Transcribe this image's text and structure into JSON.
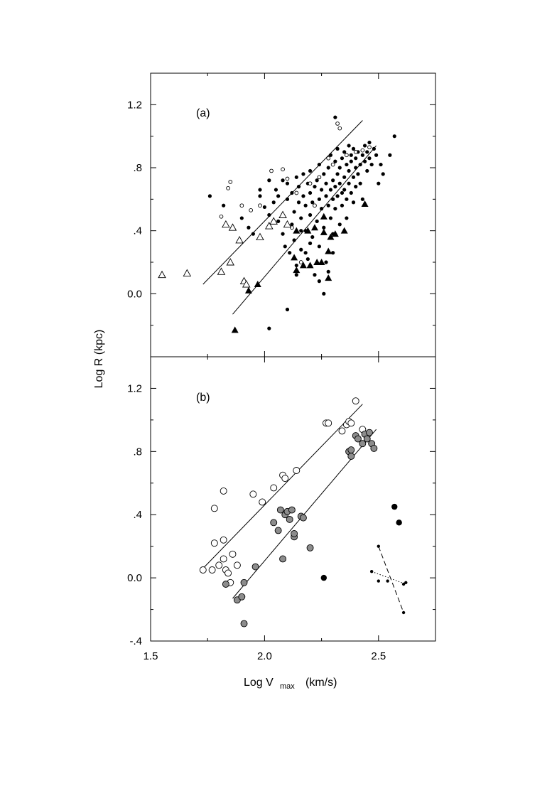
{
  "chart_data": [
    {
      "type": "scatter",
      "panel_label": "(a)",
      "xlim": [
        1.5,
        2.75
      ],
      "ylim": [
        -0.4,
        1.4
      ],
      "x_ticks": [
        1.5,
        2.0,
        2.5
      ],
      "y_ticks": [
        -0.4,
        0.0,
        0.4,
        0.8,
        1.2
      ],
      "y_tick_labels": [
        "",
        "0.0",
        ".4",
        ".8",
        "1.2"
      ],
      "grid": false,
      "series": [
        {
          "marker": "filled-small-circle",
          "points": [
            [
              1.76,
              0.62
            ],
            [
              1.82,
              0.56
            ],
            [
              1.9,
              0.48
            ],
            [
              1.93,
              0.42
            ],
            [
              1.95,
              0.38
            ],
            [
              1.98,
              0.62
            ],
            [
              2.0,
              0.55
            ],
            [
              2.02,
              0.5
            ],
            [
              2.04,
              0.58
            ],
            [
              2.05,
              0.66
            ],
            [
              2.06,
              0.46
            ],
            [
              2.08,
              0.72
            ],
            [
              2.08,
              0.38
            ],
            [
              2.09,
              0.3
            ],
            [
              2.1,
              0.6
            ],
            [
              2.1,
              0.7
            ],
            [
              2.11,
              0.26
            ],
            [
              2.12,
              0.64
            ],
            [
              2.12,
              0.44
            ],
            [
              2.13,
              0.52
            ],
            [
              2.13,
              0.34
            ],
            [
              2.14,
              0.74
            ],
            [
              2.14,
              0.18
            ],
            [
              2.15,
              0.58
            ],
            [
              2.15,
              0.68
            ],
            [
              2.16,
              0.28
            ],
            [
              2.16,
              0.48
            ],
            [
              2.17,
              0.62
            ],
            [
              2.17,
              0.76
            ],
            [
              2.18,
              0.4
            ],
            [
              2.18,
              0.56
            ],
            [
              2.19,
              0.7
            ],
            [
              2.19,
              0.22
            ],
            [
              2.2,
              0.5
            ],
            [
              2.2,
              0.64
            ],
            [
              2.2,
              0.78
            ],
            [
              2.21,
              0.36
            ],
            [
              2.21,
              0.58
            ],
            [
              2.22,
              0.68
            ],
            [
              2.22,
              0.12
            ],
            [
              2.23,
              0.46
            ],
            [
              2.23,
              0.72
            ],
            [
              2.24,
              0.6
            ],
            [
              2.24,
              0.82
            ],
            [
              2.24,
              0.3
            ],
            [
              2.25,
              0.54
            ],
            [
              2.25,
              0.66
            ],
            [
              2.26,
              0.76
            ],
            [
              2.26,
              0.42
            ],
            [
              2.27,
              0.62
            ],
            [
              2.27,
              0.7
            ],
            [
              2.27,
              0.2
            ],
            [
              2.28,
              0.56
            ],
            [
              2.28,
              0.8
            ],
            [
              2.29,
              0.66
            ],
            [
              2.29,
              0.48
            ],
            [
              2.29,
              0.88
            ],
            [
              2.3,
              0.6
            ],
            [
              2.3,
              0.72
            ],
            [
              2.3,
              0.38
            ],
            [
              2.31,
              0.68
            ],
            [
              2.31,
              0.84
            ],
            [
              2.31,
              0.54
            ],
            [
              2.32,
              0.76
            ],
            [
              2.32,
              0.62
            ],
            [
              2.32,
              0.92
            ],
            [
              2.33,
              0.7
            ],
            [
              2.33,
              0.44
            ],
            [
              2.33,
              0.8
            ],
            [
              2.34,
              0.64
            ],
            [
              2.34,
              0.86
            ],
            [
              2.34,
              0.56
            ],
            [
              2.35,
              0.74
            ],
            [
              2.35,
              0.9
            ],
            [
              2.35,
              0.66
            ],
            [
              2.36,
              0.82
            ],
            [
              2.36,
              0.6
            ],
            [
              2.36,
              0.48
            ],
            [
              2.37,
              0.78
            ],
            [
              2.37,
              0.94
            ],
            [
              2.37,
              0.7
            ],
            [
              2.38,
              0.84
            ],
            [
              2.38,
              0.64
            ],
            [
              2.38,
              0.88
            ],
            [
              2.39,
              0.74
            ],
            [
              2.39,
              0.58
            ],
            [
              2.39,
              0.92
            ],
            [
              2.4,
              0.8
            ],
            [
              2.4,
              0.68
            ],
            [
              2.4,
              0.86
            ],
            [
              2.41,
              0.76
            ],
            [
              2.41,
              0.9
            ],
            [
              2.42,
              0.82
            ],
            [
              2.42,
              0.7
            ],
            [
              2.43,
              0.88
            ],
            [
              2.43,
              0.6
            ],
            [
              2.44,
              0.84
            ],
            [
              2.44,
              0.94
            ],
            [
              2.45,
              0.78
            ],
            [
              2.45,
              0.9
            ],
            [
              2.46,
              0.86
            ],
            [
              2.46,
              0.96
            ],
            [
              2.47,
              0.82
            ],
            [
              2.48,
              0.92
            ],
            [
              2.49,
              0.88
            ],
            [
              2.5,
              0.7
            ],
            [
              2.51,
              0.82
            ],
            [
              2.52,
              0.76
            ],
            [
              2.55,
              0.88
            ],
            [
              2.57,
              1.0
            ],
            [
              2.31,
              1.12
            ],
            [
              2.26,
              0.0
            ],
            [
              2.18,
              0.26
            ],
            [
              2.14,
              0.12
            ],
            [
              2.1,
              -0.1
            ],
            [
              2.02,
              -0.22
            ],
            [
              2.2,
              0.32
            ],
            [
              2.24,
              0.08
            ],
            [
              2.28,
              0.14
            ],
            [
              2.3,
              0.26
            ],
            [
              2.16,
              0.4
            ],
            [
              2.06,
              0.62
            ],
            [
              2.02,
              0.72
            ],
            [
              1.98,
              0.66
            ]
          ]
        },
        {
          "marker": "open-small-circle",
          "points": [
            [
              1.81,
              0.49
            ],
            [
              1.84,
              0.67
            ],
            [
              1.85,
              0.71
            ],
            [
              1.9,
              0.56
            ],
            [
              1.94,
              0.53
            ],
            [
              1.98,
              0.56
            ],
            [
              2.03,
              0.78
            ],
            [
              2.08,
              0.79
            ],
            [
              2.1,
              0.73
            ],
            [
              2.14,
              0.64
            ],
            [
              2.2,
              0.7
            ],
            [
              2.24,
              0.74
            ],
            [
              2.28,
              0.86
            ],
            [
              2.32,
              1.08
            ],
            [
              2.33,
              1.05
            ],
            [
              2.36,
              0.88
            ],
            [
              2.4,
              0.9
            ],
            [
              2.43,
              0.91
            ],
            [
              2.46,
              0.93
            ],
            [
              2.22,
              0.56
            ],
            [
              2.16,
              0.2
            ],
            [
              2.12,
              0.42
            ],
            [
              2.3,
              0.82
            ]
          ]
        },
        {
          "marker": "open-triangle",
          "points": [
            [
              1.55,
              0.12
            ],
            [
              1.66,
              0.13
            ],
            [
              1.81,
              0.14
            ],
            [
              1.83,
              0.44
            ],
            [
              1.85,
              0.2
            ],
            [
              1.86,
              0.42
            ],
            [
              1.89,
              0.34
            ],
            [
              1.91,
              0.08
            ],
            [
              1.92,
              0.06
            ],
            [
              1.98,
              0.36
            ],
            [
              2.02,
              0.43
            ],
            [
              2.04,
              0.46
            ],
            [
              2.08,
              0.5
            ],
            [
              2.1,
              0.44
            ]
          ]
        },
        {
          "marker": "filled-triangle",
          "points": [
            [
              1.87,
              -0.23
            ],
            [
              1.93,
              0.02
            ],
            [
              1.97,
              0.06
            ],
            [
              2.13,
              0.23
            ],
            [
              2.14,
              0.15
            ],
            [
              2.17,
              0.18
            ],
            [
              2.2,
              0.18
            ],
            [
              2.23,
              0.2
            ],
            [
              2.25,
              0.2
            ],
            [
              2.26,
              0.49
            ],
            [
              2.28,
              0.1
            ],
            [
              2.28,
              0.27
            ],
            [
              2.29,
              0.36
            ],
            [
              2.31,
              0.38
            ],
            [
              2.35,
              0.4
            ],
            [
              2.44,
              0.57
            ],
            [
              2.14,
              0.4
            ],
            [
              2.19,
              0.4
            ],
            [
              2.22,
              0.42
            ],
            [
              2.26,
              0.39
            ]
          ]
        }
      ],
      "fit_lines": [
        {
          "x": [
            1.73,
            2.43
          ],
          "y": [
            0.06,
            1.1
          ]
        },
        {
          "x": [
            1.86,
            2.49
          ],
          "y": [
            -0.13,
            0.94
          ]
        }
      ]
    },
    {
      "type": "scatter",
      "panel_label": "(b)",
      "xlim": [
        1.5,
        2.75
      ],
      "ylim": [
        -0.4,
        1.4
      ],
      "x_ticks": [
        1.5,
        2.0,
        2.5
      ],
      "x_tick_labels": [
        "1.5",
        "2.0",
        "2.5"
      ],
      "y_ticks": [
        -0.4,
        0.0,
        0.4,
        0.8,
        1.2
      ],
      "y_tick_labels": [
        "-.4",
        "0.0",
        ".4",
        ".8",
        "1.2"
      ],
      "xlabel_main": "Log V",
      "xlabel_sub": "max",
      "xlabel_unit": "(km/s)",
      "grid": false,
      "series": [
        {
          "marker": "open-circle",
          "points": [
            [
              1.73,
              0.05
            ],
            [
              1.77,
              0.05
            ],
            [
              1.78,
              0.44
            ],
            [
              1.78,
              0.22
            ],
            [
              1.8,
              0.08
            ],
            [
              1.82,
              0.55
            ],
            [
              1.82,
              0.24
            ],
            [
              1.82,
              0.12
            ],
            [
              1.83,
              0.05
            ],
            [
              1.84,
              0.03
            ],
            [
              1.85,
              -0.03
            ],
            [
              1.86,
              0.15
            ],
            [
              1.88,
              0.08
            ],
            [
              1.95,
              0.53
            ],
            [
              1.99,
              0.48
            ],
            [
              2.04,
              0.57
            ],
            [
              2.08,
              0.65
            ],
            [
              2.09,
              0.63
            ],
            [
              2.14,
              0.68
            ],
            [
              2.27,
              0.98
            ],
            [
              2.28,
              0.98
            ],
            [
              2.34,
              0.93
            ],
            [
              2.36,
              0.97
            ],
            [
              2.37,
              0.99
            ],
            [
              2.38,
              0.98
            ],
            [
              2.4,
              1.12
            ],
            [
              2.43,
              0.94
            ]
          ]
        },
        {
          "marker": "gray-circle",
          "points": [
            [
              1.83,
              -0.04
            ],
            [
              1.88,
              -0.14
            ],
            [
              1.9,
              -0.12
            ],
            [
              1.91,
              -0.29
            ],
            [
              1.91,
              -0.03
            ],
            [
              1.96,
              0.07
            ],
            [
              2.04,
              0.35
            ],
            [
              2.06,
              0.3
            ],
            [
              2.07,
              0.43
            ],
            [
              2.08,
              0.12
            ],
            [
              2.09,
              0.4
            ],
            [
              2.1,
              0.42
            ],
            [
              2.11,
              0.37
            ],
            [
              2.12,
              0.43
            ],
            [
              2.13,
              0.26
            ],
            [
              2.13,
              0.28
            ],
            [
              2.16,
              0.39
            ],
            [
              2.17,
              0.38
            ],
            [
              2.2,
              0.19
            ],
            [
              2.37,
              0.8
            ],
            [
              2.38,
              0.77
            ],
            [
              2.38,
              0.81
            ],
            [
              2.4,
              0.9
            ],
            [
              2.41,
              0.88
            ],
            [
              2.43,
              0.85
            ],
            [
              2.44,
              0.91
            ],
            [
              2.45,
              0.88
            ],
            [
              2.47,
              0.85
            ],
            [
              2.48,
              0.82
            ],
            [
              2.46,
              0.92
            ]
          ]
        },
        {
          "marker": "filled-circle",
          "points": [
            [
              2.26,
              0.0
            ],
            [
              2.57,
              0.45
            ],
            [
              2.59,
              0.35
            ]
          ]
        },
        {
          "marker": "small-dot-connected",
          "points": [
            [
              2.47,
              0.04
            ],
            [
              2.5,
              0.2
            ],
            [
              2.5,
              -0.02
            ],
            [
              2.54,
              -0.02
            ],
            [
              2.61,
              -0.04
            ],
            [
              2.62,
              -0.03
            ],
            [
              2.61,
              -0.22
            ]
          ]
        }
      ],
      "fit_lines": [
        {
          "x": [
            1.73,
            2.43
          ],
          "y": [
            0.06,
            1.1
          ],
          "style": "solid"
        },
        {
          "x": [
            1.86,
            2.49
          ],
          "y": [
            -0.13,
            0.94
          ],
          "style": "solid"
        },
        {
          "x": [
            2.5,
            2.61
          ],
          "y": [
            0.2,
            -0.22
          ],
          "style": "dashed"
        },
        {
          "x": [
            2.47,
            2.62
          ],
          "y": [
            0.04,
            -0.04
          ],
          "style": "dotted"
        }
      ]
    }
  ],
  "shared": {
    "ylabel": "Log R  (kpc)"
  }
}
